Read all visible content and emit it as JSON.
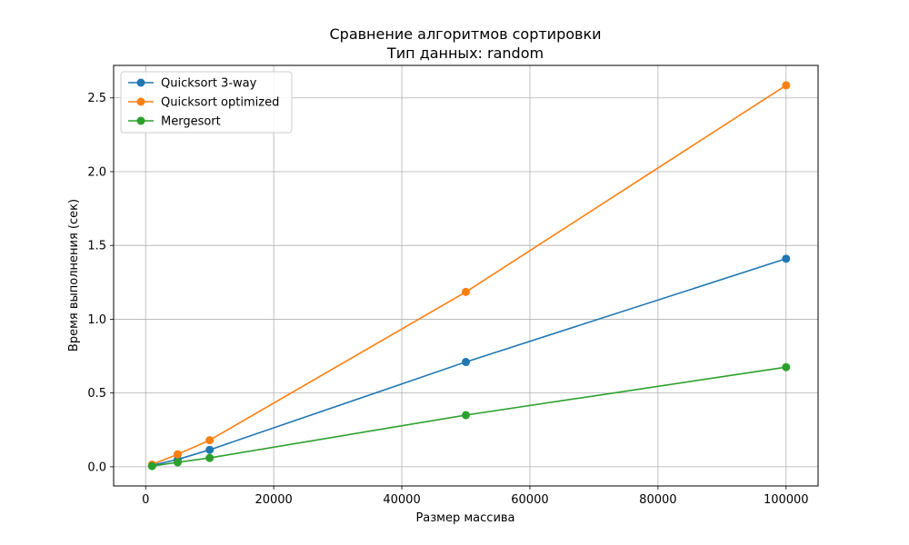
{
  "chart_data": {
    "type": "line",
    "title": "Сравнение алгоритмов сортировки",
    "subtitle": "Тип данных: random",
    "xlabel": "Размер массива",
    "ylabel": "Время выполнения (сек)",
    "xlim": [
      -5000,
      105000
    ],
    "ylim": [
      -0.13,
      2.72
    ],
    "xticks": [
      0,
      20000,
      40000,
      60000,
      80000,
      100000
    ],
    "xtick_labels": [
      "0",
      "20000",
      "40000",
      "60000",
      "80000",
      "100000"
    ],
    "yticks": [
      0.0,
      0.5,
      1.0,
      1.5,
      2.0,
      2.5
    ],
    "ytick_labels": [
      "0.0",
      "0.5",
      "1.0",
      "1.5",
      "2.0",
      "2.5"
    ],
    "grid": true,
    "legend_position": "upper-left",
    "x": [
      1000,
      5000,
      10000,
      50000,
      100000
    ],
    "series": [
      {
        "name": "Quicksort 3-way",
        "color": "#1f77b4",
        "values": [
          0.01,
          0.05,
          0.115,
          0.71,
          1.41
        ]
      },
      {
        "name": "Quicksort optimized",
        "color": "#ff7f0e",
        "values": [
          0.015,
          0.085,
          0.18,
          1.185,
          2.585
        ]
      },
      {
        "name": "Mergesort",
        "color": "#2ca02c",
        "values": [
          0.005,
          0.03,
          0.06,
          0.35,
          0.675
        ]
      }
    ]
  }
}
